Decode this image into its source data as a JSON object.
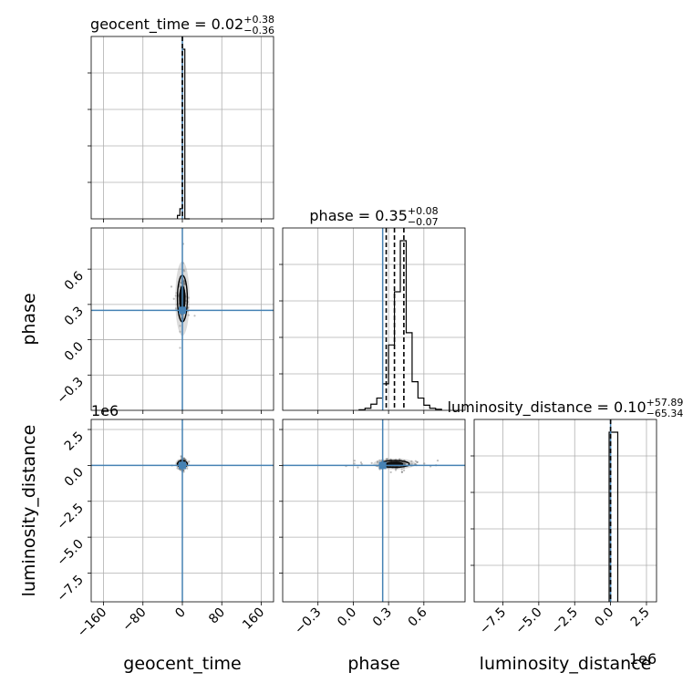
{
  "chart_data": {
    "type": "corner",
    "parameters": [
      "geocent_time",
      "phase",
      "luminosity_distance"
    ],
    "injection_color": "#4682b4",
    "truths": {
      "geocent_time": 0.0,
      "phase": 0.25,
      "luminosity_distance": 0.0
    },
    "grid": true,
    "titles": [
      {
        "param": "geocent_time",
        "prefix": "geocent_time = ",
        "median": "0.02",
        "upper": "+0.38",
        "lower": "−0.36"
      },
      {
        "param": "phase",
        "prefix": "phase = ",
        "median": "0.35",
        "upper": "+0.08",
        "lower": "−0.07"
      },
      {
        "param": "luminosity_distance",
        "prefix": "luminosity_distance = ",
        "median": "0.10",
        "upper": "+57.89",
        "lower": "−65.34"
      }
    ],
    "axes": {
      "geocent_time": {
        "range": [
          -185,
          185
        ],
        "ticks": [
          -160,
          -80,
          0,
          80,
          160
        ],
        "tick_labels": [
          "−160",
          "−80",
          "0",
          "80",
          "160"
        ]
      },
      "phase": {
        "range": [
          -0.6,
          0.95
        ],
        "ticks": [
          -0.3,
          0.0,
          0.3,
          0.6
        ],
        "tick_labels": [
          "−0.3",
          "0.0",
          "0.3",
          "0.6"
        ]
      },
      "luminosity_distance": {
        "range": [
          -9.5,
          3.2
        ],
        "ticks": [
          -7.5,
          -5.0,
          -2.5,
          0.0,
          2.5
        ],
        "tick_labels": [
          "−7.5",
          "−5.0",
          "−2.5",
          "0.0",
          "2.5"
        ],
        "offset_label": "1e6"
      }
    },
    "histograms": {
      "geocent_time": {
        "edges": [
          -10,
          -5,
          0,
          5,
          10,
          15
        ],
        "counts": [
          0.02,
          0.06,
          1.0,
          0.0,
          0.0
        ]
      },
      "phase": {
        "edges": [
          0.05,
          0.1,
          0.15,
          0.2,
          0.25,
          0.3,
          0.35,
          0.4,
          0.45,
          0.5,
          0.55,
          0.6,
          0.65,
          0.7,
          0.75
        ],
        "counts": [
          0.003,
          0.01,
          0.03,
          0.06,
          0.13,
          0.32,
          0.58,
          0.83,
          0.38,
          0.14,
          0.06,
          0.025,
          0.01,
          0.005
        ]
      },
      "luminosity_distance": {
        "edges": [
          -0.1,
          0.5
        ],
        "counts": [
          1.0
        ]
      }
    },
    "quantile_lines": {
      "geocent_time": [
        0.02
      ],
      "phase": [
        0.28,
        0.35,
        0.43
      ],
      "luminosity_distance": [
        0.0
      ]
    },
    "x_labels": [
      "geocent_time",
      "phase",
      "luminosity_distance"
    ],
    "y_labels": [
      "phase",
      "luminosity_distance"
    ]
  }
}
